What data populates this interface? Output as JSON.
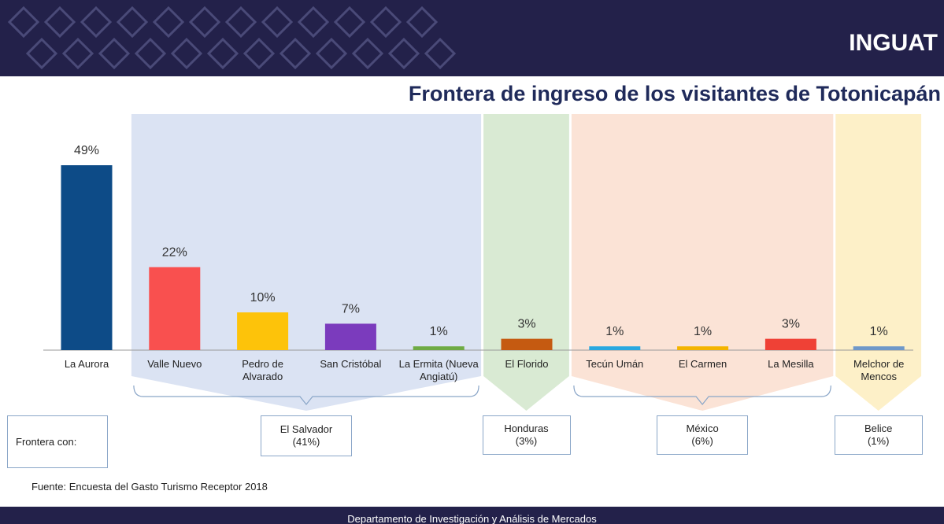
{
  "header": {
    "logo": "INGUAT"
  },
  "chart_data": {
    "type": "bar",
    "title": "Frontera de ingreso de los visitantes de Totonicapán",
    "categories": [
      "La Aurora",
      "Valle Nuevo",
      "Pedro de Alvarado",
      "San Cristóbal",
      "La Ermita (Nueva Angiatú)",
      "El Florido",
      "Tecún Umán",
      "El Carmen",
      "La Mesilla",
      "Melchor de Mencos"
    ],
    "values": [
      49,
      22,
      10,
      7,
      1,
      3,
      1,
      1,
      3,
      1
    ],
    "value_labels": [
      "49%",
      "22%",
      "10%",
      "7%",
      "1%",
      "3%",
      "1%",
      "1%",
      "3%",
      "1%"
    ],
    "colors": [
      "#0d4b87",
      "#f9504f",
      "#fdc30a",
      "#7b3bbd",
      "#6fab44",
      "#c55a11",
      "#29a8e0",
      "#f4b400",
      "#ef4136",
      "#6f98c9"
    ],
    "group_caption": "Frontera con:",
    "groups": [
      {
        "name": "El Salvador",
        "value": 41,
        "value_label": "(41%)",
        "color": "#dbe3f3"
      },
      {
        "name": "Honduras",
        "value": 3,
        "value_label": "(3%)",
        "color": "#d9ead3"
      },
      {
        "name": "México",
        "value": 6,
        "value_label": "(6%)",
        "color": "#fbe3d6"
      },
      {
        "name": "Belice",
        "value": 1,
        "value_label": "(1%)",
        "color": "#fdf0c8"
      }
    ]
  },
  "source": "Fuente: Encuesta del Gasto Turismo  Receptor  2018",
  "footer": "Departamento de Investigación y Análisis de Mercados"
}
